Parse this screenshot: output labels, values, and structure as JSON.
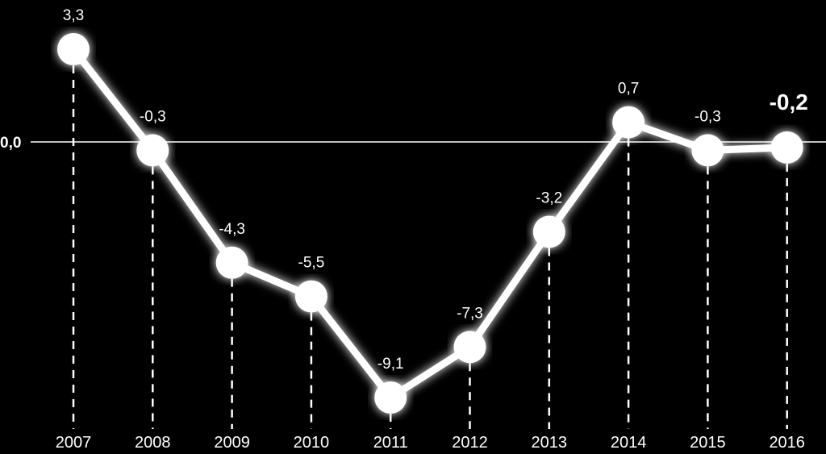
{
  "chart_data": {
    "type": "line",
    "title": "",
    "xlabel": "",
    "ylabel": "",
    "categories": [
      "2007",
      "2008",
      "2009",
      "2010",
      "2011",
      "2012",
      "2013",
      "2014",
      "2015",
      "2016"
    ],
    "series": [
      {
        "values": [
          3.3,
          -0.3,
          -4.3,
          -5.5,
          -9.1,
          -7.3,
          -3.2,
          0.7,
          -0.3,
          -0.2
        ]
      }
    ],
    "value_labels": [
      "3,3",
      "-0,3",
      "-4,3",
      "-5,5",
      "-9,1",
      "-7,3",
      "-3,2",
      "0,7",
      "-0,3",
      "-0,2"
    ],
    "emphasized_index": 9,
    "zero_line_label": "0,0",
    "ylim": [
      -9.6,
      3.9
    ],
    "grid": false,
    "legend": "none",
    "colors": {
      "background": "#000000",
      "line": "#ffffff",
      "text": "#ffffff"
    }
  }
}
